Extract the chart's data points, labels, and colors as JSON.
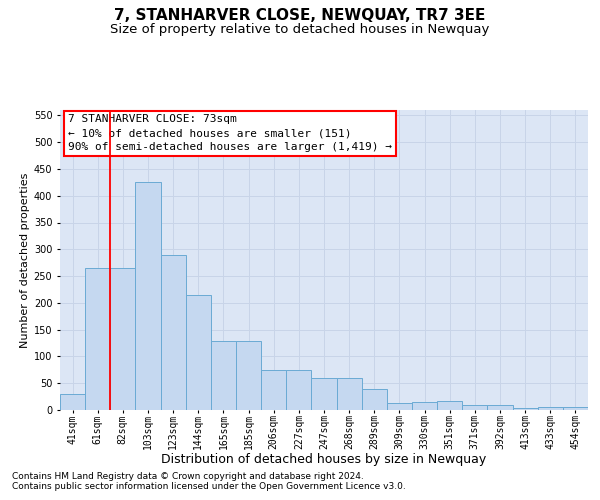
{
  "title": "7, STANHARVER CLOSE, NEWQUAY, TR7 3EE",
  "subtitle": "Size of property relative to detached houses in Newquay",
  "xlabel": "Distribution of detached houses by size in Newquay",
  "ylabel": "Number of detached properties",
  "categories": [
    "41sqm",
    "61sqm",
    "82sqm",
    "103sqm",
    "123sqm",
    "144sqm",
    "165sqm",
    "185sqm",
    "206sqm",
    "227sqm",
    "247sqm",
    "268sqm",
    "289sqm",
    "309sqm",
    "330sqm",
    "351sqm",
    "371sqm",
    "392sqm",
    "413sqm",
    "433sqm",
    "454sqm"
  ],
  "bar_values": [
    30,
    265,
    265,
    425,
    290,
    215,
    128,
    128,
    75,
    75,
    60,
    60,
    40,
    13,
    15,
    17,
    10,
    9,
    3,
    5,
    5
  ],
  "bar_color": "#c5d8f0",
  "bar_edge_color": "#6aaad4",
  "grid_color": "#c8d4e8",
  "background_color": "#dce6f5",
  "ylim": [
    0,
    560
  ],
  "yticks": [
    0,
    50,
    100,
    150,
    200,
    250,
    300,
    350,
    400,
    450,
    500,
    550
  ],
  "vline_x": 1.5,
  "property_label": "7 STANHARVER CLOSE: 73sqm",
  "annotation_line1": "← 10% of detached houses are smaller (151)",
  "annotation_line2": "90% of semi-detached houses are larger (1,419) →",
  "footer1": "Contains HM Land Registry data © Crown copyright and database right 2024.",
  "footer2": "Contains public sector information licensed under the Open Government Licence v3.0.",
  "title_fontsize": 11,
  "subtitle_fontsize": 9.5,
  "xlabel_fontsize": 9,
  "ylabel_fontsize": 8,
  "tick_fontsize": 7,
  "annotation_fontsize": 8,
  "footer_fontsize": 6.5
}
